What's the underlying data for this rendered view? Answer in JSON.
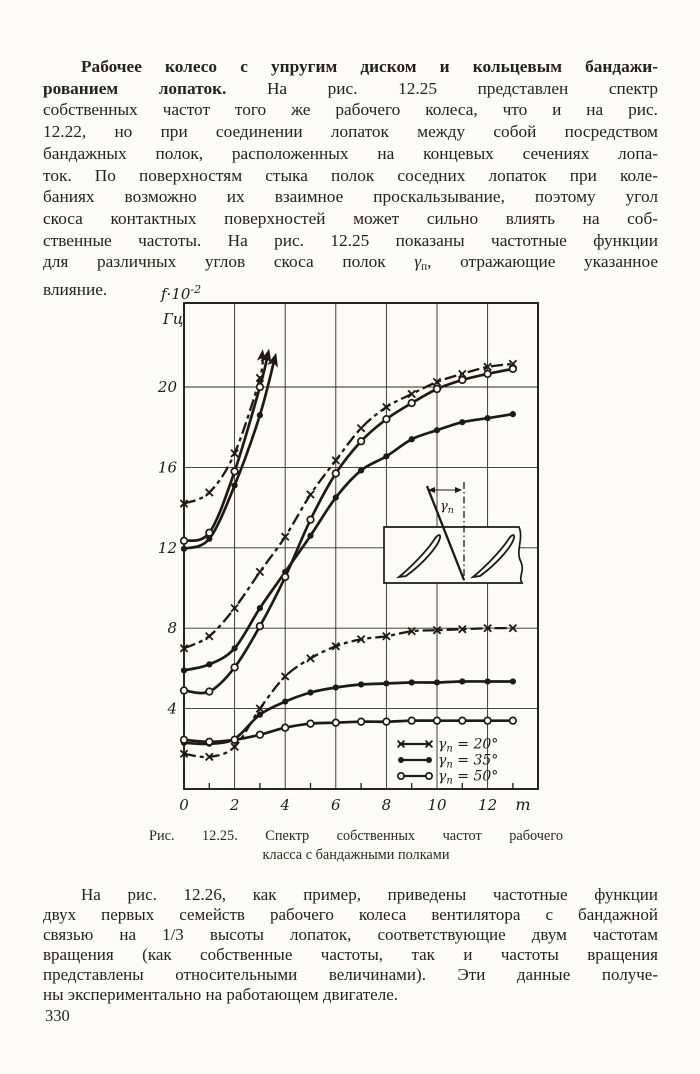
{
  "page_number": "330",
  "paragraphs": {
    "p1": {
      "lines": [
        [
          {
            "t": "Рабочее колесо с упругим диском и кольцевым бандажи-",
            "b": true
          }
        ],
        [
          {
            "t": "рованием лопаток.",
            "b": true
          },
          {
            "t": " На рис. 12.25 представлен спектр"
          }
        ],
        [
          {
            "t": "собственных частот того же рабочего колеса, что и на рис."
          }
        ],
        [
          {
            "t": "12.22, но при соединении лопаток между собой посредством"
          }
        ],
        [
          {
            "t": "бандажных полок, расположенных на концевых сечениях лопа-"
          }
        ],
        [
          {
            "t": "ток. По поверхностям стыка полок соседних лопаток при коле-"
          }
        ],
        [
          {
            "t": "баниях возможно их взаимное проскальзывание, поэтому угол"
          }
        ],
        [
          {
            "t": "скоса контактных поверхностей может сильно влиять на соб-"
          }
        ],
        [
          {
            "t": "ственные частоты. На рис. 12.25 показаны частотные функции"
          }
        ],
        [
          {
            "t": "для различных углов скоса полок "
          },
          {
            "t": "γ",
            "i": true
          },
          {
            "t": "п",
            "sub": true
          },
          {
            "t": ", отражающие указанное"
          }
        ],
        [
          {
            "t": "влияние."
          }
        ]
      ]
    },
    "p2": {
      "lines": [
        [
          {
            "t": "На рис. 12.26, как пример, приведены частотные функции"
          }
        ],
        [
          {
            "t": "двух первых семейств рабочего колеса вентилятора с бандажной"
          }
        ],
        [
          {
            "t": "связью на 1/3 высоты лопаток, соответствующие двум частотам"
          }
        ],
        [
          {
            "t": "вращения (как собственные частоты, так и частоты вращения"
          }
        ],
        [
          {
            "t": "представлены относительными величинами). Эти данные получе-"
          }
        ],
        [
          {
            "t": "ны экспериментально на работающем двигателе."
          }
        ]
      ]
    }
  },
  "caption": {
    "line1": "Рис. 12.25. Спектр собственных частот рабочего",
    "line2": "класса с бандажными полками"
  },
  "chart_data": {
    "type": "line",
    "title": "Спектр собственных частот рабочего колеса с бандажными полками",
    "y_axis_label": {
      "base": "f·10",
      "exp": "-2",
      "unit": "Гц"
    },
    "x_axis_end_label": "m",
    "x_ticks": [
      0,
      2,
      4,
      6,
      8,
      10,
      12
    ],
    "x_minor_ticks": [
      1,
      3,
      5,
      7,
      9,
      11,
      13
    ],
    "y_ticks": [
      4,
      8,
      12,
      16,
      20
    ],
    "x_range": [
      0,
      14
    ],
    "y_range": [
      0,
      24.2
    ],
    "grid": true,
    "x": [
      0,
      1,
      2,
      3,
      4,
      5,
      6,
      7,
      8,
      9,
      10,
      11,
      12,
      13
    ],
    "series": [
      {
        "name": "семейство 3, γп = 35°",
        "family": 3,
        "gamma": "35",
        "marker": "dot",
        "dash": false,
        "x": [
          0,
          1,
          2,
          3
        ],
        "y": [
          11.95,
          12.45,
          15.1,
          18.6
        ],
        "tip": [
          3.6,
          21.5
        ]
      },
      {
        "name": "семейство 3, γп = 50°",
        "family": 3,
        "gamma": "50",
        "marker": "circle",
        "dash": false,
        "x": [
          0,
          1,
          2,
          3
        ],
        "y": [
          12.35,
          12.75,
          15.8,
          20.0
        ],
        "tip": [
          3.33,
          21.7
        ]
      },
      {
        "name": "семейство 3, γп = 20°",
        "family": 3,
        "gamma": "20",
        "marker": "x",
        "dash": true,
        "x": [
          0,
          1,
          2,
          3
        ],
        "y": [
          14.2,
          14.75,
          16.7,
          20.45
        ],
        "tip": [
          3.1,
          21.7
        ]
      },
      {
        "name": "семейство 2, γп = 35°",
        "family": 2,
        "gamma": "35",
        "marker": "dot",
        "dash": false,
        "y": [
          5.9,
          6.2,
          7.0,
          9.0,
          10.8,
          12.6,
          14.5,
          15.85,
          16.55,
          17.4,
          17.85,
          18.25,
          18.45,
          18.65
        ]
      },
      {
        "name": "семейство 2, γп = 50°",
        "family": 2,
        "gamma": "50",
        "marker": "circle",
        "dash": false,
        "y": [
          4.9,
          4.85,
          6.05,
          8.1,
          10.55,
          13.4,
          15.7,
          17.3,
          18.4,
          19.2,
          19.9,
          20.35,
          20.65,
          20.9
        ]
      },
      {
        "name": "семейство 2, γп = 20°",
        "family": 2,
        "gamma": "20",
        "marker": "x",
        "dash": true,
        "y": [
          7.0,
          7.6,
          9.0,
          10.8,
          12.55,
          14.65,
          16.35,
          17.95,
          19.0,
          19.65,
          20.25,
          20.65,
          21.0,
          21.15
        ]
      },
      {
        "name": "семейство 1, γп = 35°",
        "family": 1,
        "gamma": "35",
        "marker": "dot",
        "dash": false,
        "y": [
          2.3,
          2.25,
          2.5,
          3.7,
          4.35,
          4.8,
          5.05,
          5.2,
          5.25,
          5.3,
          5.3,
          5.35,
          5.35,
          5.35
        ]
      },
      {
        "name": "семейство 1, γп = 50°",
        "family": 1,
        "gamma": "50",
        "marker": "circle",
        "dash": false,
        "y": [
          2.45,
          2.35,
          2.45,
          2.7,
          3.05,
          3.25,
          3.3,
          3.35,
          3.35,
          3.4,
          3.4,
          3.4,
          3.4,
          3.4
        ]
      },
      {
        "name": "семейство 1, γп = 20°",
        "family": 1,
        "gamma": "20",
        "marker": "x",
        "dash": true,
        "y": [
          1.75,
          1.6,
          2.1,
          4.0,
          5.6,
          6.5,
          7.1,
          7.45,
          7.6,
          7.85,
          7.9,
          7.95,
          8.0,
          8.0
        ]
      }
    ],
    "legend": {
      "position": "bottom-right",
      "items": [
        {
          "marker": "x",
          "sym": "γ",
          "sub": "n",
          "value": "= 20°"
        },
        {
          "marker": "dot",
          "sym": "γ",
          "sub": "n",
          "value": "= 35°"
        },
        {
          "marker": "circle",
          "sym": "γ",
          "sub": "n",
          "value": "= 50°"
        }
      ]
    },
    "inset": {
      "label_sym": "γ",
      "label_sub": "n"
    }
  }
}
